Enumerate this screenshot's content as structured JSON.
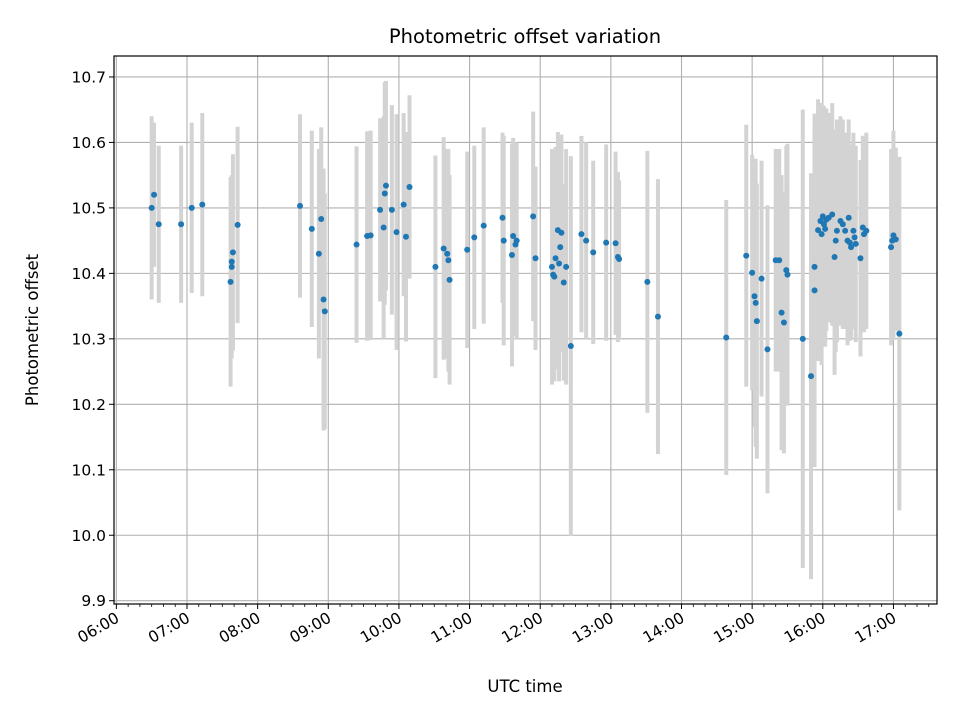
{
  "chart_data": {
    "type": "scatter",
    "title": "Photometric offset variation",
    "xlabel": "UTC time",
    "ylabel": "Photometric offset",
    "x_axis_type": "time",
    "xlim": [
      "05:58",
      "17:37"
    ],
    "ylim": [
      9.895,
      10.732
    ],
    "grid": true,
    "x_ticks": [
      "06:00",
      "07:00",
      "08:00",
      "09:00",
      "10:00",
      "11:00",
      "12:00",
      "13:00",
      "14:00",
      "15:00",
      "16:00",
      "17:00"
    ],
    "y_ticks": [
      9.9,
      10.0,
      10.1,
      10.2,
      10.3,
      10.4,
      10.5,
      10.6,
      10.7
    ],
    "point_color": "#1f77b4",
    "errorbar_color": "#d3d3d3",
    "series": [
      {
        "points": [
          [
            "06:30",
            10.5,
            0.14
          ],
          [
            "06:32",
            10.52,
            0.11
          ],
          [
            "06:36",
            10.475,
            0.12
          ],
          [
            "06:55",
            10.475,
            0.12
          ],
          [
            "07:04",
            10.5,
            0.13
          ],
          [
            "07:13",
            10.505,
            0.14
          ],
          [
            "07:37",
            10.387,
            0.16
          ],
          [
            "07:38",
            10.41,
            0.14
          ],
          [
            "07:38",
            10.418,
            0.13
          ],
          [
            "07:39",
            10.432,
            0.15
          ],
          [
            "07:43",
            10.474,
            0.15
          ],
          [
            "08:36",
            10.503,
            0.14
          ],
          [
            "08:46",
            10.468,
            0.15
          ],
          [
            "08:52",
            10.43,
            0.16
          ],
          [
            "08:54",
            10.483,
            0.14
          ],
          [
            "08:56",
            10.36,
            0.2
          ],
          [
            "08:57",
            10.342,
            0.18
          ],
          [
            "09:24",
            10.444,
            0.15
          ],
          [
            "09:33",
            10.457,
            0.16
          ],
          [
            "09:36",
            10.458,
            0.16
          ],
          [
            "09:44",
            10.497,
            0.14
          ],
          [
            "09:47",
            10.47,
            0.17
          ],
          [
            "09:48",
            10.522,
            0.17
          ],
          [
            "09:49",
            10.534,
            0.16
          ],
          [
            "09:54",
            10.497,
            0.16
          ],
          [
            "09:58",
            10.463,
            0.18
          ],
          [
            "10:04",
            10.505,
            0.14
          ],
          [
            "10:06",
            10.456,
            0.16
          ],
          [
            "10:09",
            10.532,
            0.14
          ],
          [
            "10:31",
            10.41,
            0.17
          ],
          [
            "10:38",
            10.438,
            0.17
          ],
          [
            "10:41",
            10.43,
            0.16
          ],
          [
            "10:42",
            10.42,
            0.17
          ],
          [
            "10:43",
            10.39,
            0.16
          ],
          [
            "10:58",
            10.436,
            0.15
          ],
          [
            "11:04",
            10.455,
            0.14
          ],
          [
            "11:12",
            10.473,
            0.15
          ],
          [
            "11:28",
            10.485,
            0.13
          ],
          [
            "11:29",
            10.45,
            0.16
          ],
          [
            "11:36",
            10.428,
            0.17
          ],
          [
            "11:37",
            10.457,
            0.15
          ],
          [
            "11:39",
            10.444,
            0.14
          ],
          [
            "11:40",
            10.45,
            0.15
          ],
          [
            "11:54",
            10.487,
            0.16
          ],
          [
            "11:56",
            10.423,
            0.14
          ],
          [
            "12:10",
            10.41,
            0.18
          ],
          [
            "12:11",
            10.398,
            0.16
          ],
          [
            "12:12",
            10.395,
            0.16
          ],
          [
            "12:13",
            10.423,
            0.17
          ],
          [
            "12:15",
            10.466,
            0.15
          ],
          [
            "12:16",
            10.415,
            0.18
          ],
          [
            "12:17",
            10.44,
            0.16
          ],
          [
            "12:18",
            10.462,
            0.15
          ],
          [
            "12:20",
            10.386,
            0.15
          ],
          [
            "12:22",
            10.41,
            0.18
          ],
          [
            "12:26",
            10.289,
            0.29
          ],
          [
            "12:35",
            10.46,
            0.15
          ],
          [
            "12:39",
            10.45,
            0.15
          ],
          [
            "12:45",
            10.432,
            0.14
          ],
          [
            "12:56",
            10.447,
            0.15
          ],
          [
            "13:04",
            10.446,
            0.14
          ],
          [
            "13:06",
            10.425,
            0.13
          ],
          [
            "13:07",
            10.422,
            0.12
          ],
          [
            "13:31",
            10.387,
            0.2
          ],
          [
            "13:40",
            10.334,
            0.21
          ],
          [
            "14:38",
            10.302,
            0.21
          ],
          [
            "14:55",
            10.427,
            0.2
          ],
          [
            "15:00",
            10.401,
            0.18
          ],
          [
            "15:02",
            10.365,
            0.2
          ],
          [
            "15:03",
            10.355,
            0.22
          ],
          [
            "15:04",
            10.327,
            0.21
          ],
          [
            "15:08",
            10.392,
            0.18
          ],
          [
            "15:13",
            10.284,
            0.22
          ],
          [
            "15:20",
            10.42,
            0.17
          ],
          [
            "15:23",
            10.42,
            0.17
          ],
          [
            "15:25",
            10.34,
            0.21
          ],
          [
            "15:27",
            10.325,
            0.2
          ],
          [
            "15:29",
            10.405,
            0.19
          ],
          [
            "15:30",
            10.398,
            0.2
          ],
          [
            "15:43",
            10.3,
            0.35
          ],
          [
            "15:50",
            10.243,
            0.31
          ],
          [
            "15:53",
            10.41,
            0.21
          ],
          [
            "15:53",
            10.374,
            0.27
          ],
          [
            "15:56",
            10.466,
            0.2
          ],
          [
            "15:58",
            10.48,
            0.18
          ],
          [
            "15:59",
            10.46,
            0.2
          ],
          [
            "16:00",
            10.487,
            0.17
          ],
          [
            "16:01",
            10.475,
            0.18
          ],
          [
            "16:02",
            10.468,
            0.18
          ],
          [
            "16:03",
            10.482,
            0.17
          ],
          [
            "16:05",
            10.485,
            0.16
          ],
          [
            "16:08",
            10.49,
            0.17
          ],
          [
            "16:10",
            10.425,
            0.18
          ],
          [
            "16:11",
            10.45,
            0.17
          ],
          [
            "16:12",
            10.465,
            0.17
          ],
          [
            "16:15",
            10.48,
            0.16
          ],
          [
            "16:17",
            10.475,
            0.16
          ],
          [
            "16:19",
            10.465,
            0.15
          ],
          [
            "16:21",
            10.45,
            0.16
          ],
          [
            "16:22",
            10.485,
            0.15
          ],
          [
            "16:23",
            10.447,
            0.15
          ],
          [
            "16:24",
            10.44,
            0.14
          ],
          [
            "16:26",
            10.465,
            0.15
          ],
          [
            "16:27",
            10.455,
            0.14
          ],
          [
            "16:28",
            10.445,
            0.15
          ],
          [
            "16:32",
            10.423,
            0.15
          ],
          [
            "16:34",
            10.47,
            0.14
          ],
          [
            "16:35",
            10.46,
            0.15
          ],
          [
            "16:37",
            10.465,
            0.15
          ],
          [
            "16:58",
            10.44,
            0.15
          ],
          [
            "16:59",
            10.45,
            0.14
          ],
          [
            "17:00",
            10.458,
            0.16
          ],
          [
            "17:02",
            10.452,
            0.14
          ],
          [
            "17:05",
            10.308,
            0.27
          ]
        ]
      }
    ]
  }
}
